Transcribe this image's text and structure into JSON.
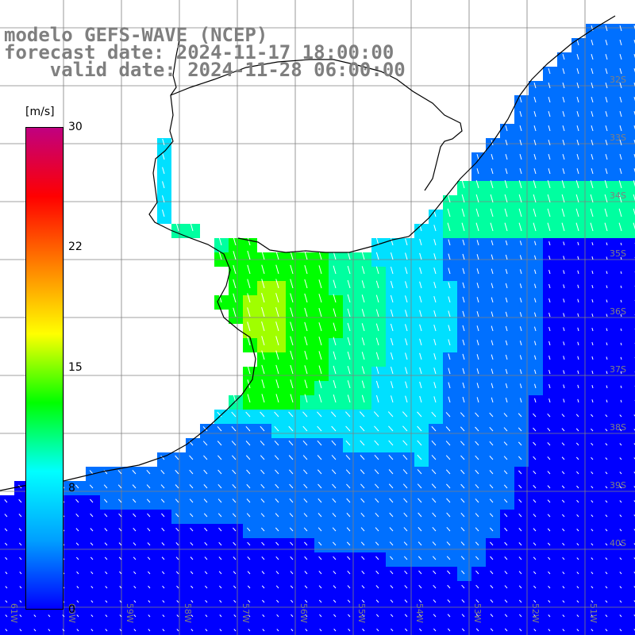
{
  "title": {
    "line1": "modelo GEFS-WAVE (NCEP)",
    "line2": "forecast date: 2024-11-17 18:00:00",
    "line3": "    valid date: 2024-11-28 06:00:00"
  },
  "colorbar": {
    "unit": "[m/s]",
    "ticks": [
      "30",
      "22",
      "15",
      "8",
      "0"
    ],
    "range": [
      0,
      30
    ],
    "colors": [
      "#0000ff",
      "#00a0ff",
      "#00ffff",
      "#00ff00",
      "#ffff00",
      "#ff8000",
      "#ff0000",
      "#c00080"
    ]
  },
  "map": {
    "variable": "wind speed with direction arrows",
    "land_color": "#ffffff",
    "coastline_color": "#000000",
    "grid_color": "#808080",
    "lat_labels": [
      "32S",
      "33S",
      "34S",
      "35S",
      "36S",
      "37S",
      "38S",
      "39S",
      "40S"
    ],
    "lon_labels": [
      "61W",
      "60W",
      "59W",
      "58W",
      "57W",
      "56W",
      "55W",
      "54W",
      "53W",
      "52W",
      "51W"
    ]
  }
}
